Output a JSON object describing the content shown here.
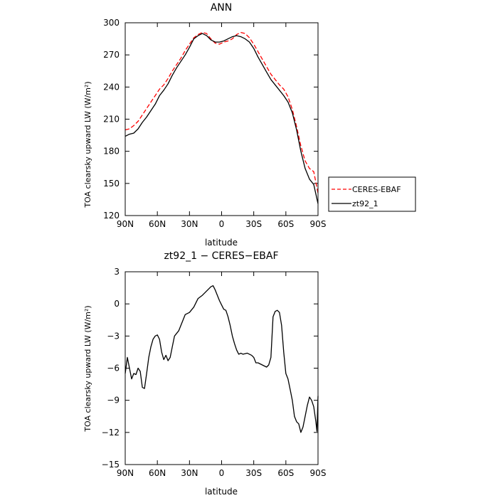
{
  "chart_data": [
    {
      "type": "line",
      "title": "ANN",
      "xlabel": "latitude",
      "ylabel": "TOA clearsky upward LW (W/m²)",
      "x_ticks": [
        90,
        60,
        30,
        0,
        -30,
        -60,
        -90
      ],
      "x_tick_labels": [
        "90N",
        "60N",
        "30N",
        "0",
        "30S",
        "60S",
        "90S"
      ],
      "xlim": [
        90,
        -90
      ],
      "ylim": [
        120,
        300
      ],
      "y_ticks": [
        120,
        150,
        180,
        210,
        240,
        270,
        300
      ],
      "y_tick_labels": [
        "120",
        "150",
        "180",
        "210",
        "240",
        "270",
        "300"
      ],
      "legend_position": "right",
      "series": [
        {
          "name": "CERES-EBAF",
          "color": "#ff0000",
          "dash": "dashed",
          "points": [
            [
              90,
              200
            ],
            [
              86,
              201
            ],
            [
              82,
              204
            ],
            [
              78,
              208
            ],
            [
              74,
              214
            ],
            [
              70,
              220
            ],
            [
              66,
              226
            ],
            [
              62,
              232
            ],
            [
              58,
              238
            ],
            [
              54,
              242
            ],
            [
              50,
              248
            ],
            [
              46,
              255
            ],
            [
              42,
              261
            ],
            [
              38,
              267
            ],
            [
              34,
              274
            ],
            [
              30,
              280
            ],
            [
              26,
              286
            ],
            [
              22,
              289
            ],
            [
              18,
              291
            ],
            [
              14,
              290
            ],
            [
              10,
              285
            ],
            [
              6,
              281
            ],
            [
              2,
              280
            ],
            [
              -2,
              282
            ],
            [
              -6,
              283
            ],
            [
              -10,
              285
            ],
            [
              -14,
              289
            ],
            [
              -18,
              291
            ],
            [
              -22,
              290
            ],
            [
              -26,
              286
            ],
            [
              -30,
              280
            ],
            [
              -34,
              273
            ],
            [
              -38,
              266
            ],
            [
              -42,
              259
            ],
            [
              -46,
              252
            ],
            [
              -50,
              247
            ],
            [
              -54,
              242
            ],
            [
              -58,
              238
            ],
            [
              -62,
              231
            ],
            [
              -66,
              219
            ],
            [
              -70,
              203
            ],
            [
              -74,
              185
            ],
            [
              -78,
              171
            ],
            [
              -82,
              164
            ],
            [
              -86,
              161
            ],
            [
              -90,
              141
            ]
          ]
        },
        {
          "name": "zt92_1",
          "color": "#000000",
          "dash": "solid",
          "points": [
            [
              90,
              194
            ],
            [
              86,
              196
            ],
            [
              82,
              197
            ],
            [
              78,
              201
            ],
            [
              74,
              207
            ],
            [
              70,
              212
            ],
            [
              66,
              218
            ],
            [
              62,
              224
            ],
            [
              58,
              232
            ],
            [
              54,
              237
            ],
            [
              50,
              243
            ],
            [
              46,
              251
            ],
            [
              42,
              258
            ],
            [
              38,
              264
            ],
            [
              34,
              270
            ],
            [
              30,
              277
            ],
            [
              26,
              285
            ],
            [
              22,
              288
            ],
            [
              18,
              290
            ],
            [
              14,
              288
            ],
            [
              10,
              284
            ],
            [
              6,
              282
            ],
            [
              2,
              282
            ],
            [
              -2,
              283
            ],
            [
              -6,
              285
            ],
            [
              -10,
              287
            ],
            [
              -14,
              288
            ],
            [
              -18,
              287
            ],
            [
              -22,
              285
            ],
            [
              -26,
              282
            ],
            [
              -30,
              276
            ],
            [
              -34,
              268
            ],
            [
              -38,
              261
            ],
            [
              -42,
              254
            ],
            [
              -46,
              247
            ],
            [
              -50,
              242
            ],
            [
              -54,
              237
            ],
            [
              -58,
              232
            ],
            [
              -62,
              226
            ],
            [
              -66,
              216
            ],
            [
              -70,
              200
            ],
            [
              -74,
              180
            ],
            [
              -78,
              164
            ],
            [
              -82,
              154
            ],
            [
              -86,
              149
            ],
            [
              -90,
              131
            ]
          ]
        }
      ]
    },
    {
      "type": "line",
      "title": "zt92_1 − CERES−EBAF",
      "xlabel": "latitude",
      "ylabel": "TOA clearsky upward LW (W/m²)",
      "x_ticks": [
        90,
        60,
        30,
        0,
        -30,
        -60,
        -90
      ],
      "x_tick_labels": [
        "90N",
        "60N",
        "30N",
        "0",
        "30S",
        "60S",
        "90S"
      ],
      "xlim": [
        90,
        -90
      ],
      "ylim": [
        -15,
        3
      ],
      "y_ticks": [
        -15,
        -12,
        -9,
        -6,
        -3,
        0,
        3
      ],
      "y_tick_labels": [
        "−15",
        "−12",
        "−9",
        "−6",
        "−3",
        "0",
        "3"
      ],
      "series": [
        {
          "name": "zt92_1",
          "color": "#000000",
          "dash": "solid",
          "points": [
            [
              90,
              -6.5
            ],
            [
              88,
              -5.0
            ],
            [
              86,
              -6.0
            ],
            [
              84,
              -7.0
            ],
            [
              82,
              -6.5
            ],
            [
              80,
              -6.6
            ],
            [
              78,
              -6.0
            ],
            [
              76,
              -6.3
            ],
            [
              74,
              -7.8
            ],
            [
              72,
              -7.9
            ],
            [
              70,
              -6.5
            ],
            [
              68,
              -5.0
            ],
            [
              66,
              -4.0
            ],
            [
              64,
              -3.3
            ],
            [
              62,
              -3.0
            ],
            [
              60,
              -2.9
            ],
            [
              58,
              -3.3
            ],
            [
              56,
              -4.5
            ],
            [
              54,
              -5.2
            ],
            [
              52,
              -4.8
            ],
            [
              50,
              -5.3
            ],
            [
              48,
              -5.0
            ],
            [
              46,
              -4.0
            ],
            [
              44,
              -3.0
            ],
            [
              40,
              -2.5
            ],
            [
              38,
              -2.0
            ],
            [
              34,
              -1.0
            ],
            [
              30,
              -0.8
            ],
            [
              26,
              -0.3
            ],
            [
              22,
              0.5
            ],
            [
              18,
              0.8
            ],
            [
              14,
              1.2
            ],
            [
              10,
              1.6
            ],
            [
              8,
              1.7
            ],
            [
              6,
              1.3
            ],
            [
              4,
              0.8
            ],
            [
              2,
              0.3
            ],
            [
              0,
              -0.1
            ],
            [
              -2,
              -0.5
            ],
            [
              -4,
              -0.6
            ],
            [
              -6,
              -1.2
            ],
            [
              -8,
              -2.0
            ],
            [
              -10,
              -3.0
            ],
            [
              -12,
              -3.7
            ],
            [
              -14,
              -4.3
            ],
            [
              -16,
              -4.7
            ],
            [
              -18,
              -4.6
            ],
            [
              -20,
              -4.7
            ],
            [
              -24,
              -4.6
            ],
            [
              -28,
              -4.8
            ],
            [
              -30,
              -5.0
            ],
            [
              -32,
              -5.5
            ],
            [
              -34,
              -5.5
            ],
            [
              -38,
              -5.7
            ],
            [
              -42,
              -5.9
            ],
            [
              -44,
              -5.7
            ],
            [
              -46,
              -5.0
            ],
            [
              -48,
              -1.2
            ],
            [
              -50,
              -0.7
            ],
            [
              -52,
              -0.6
            ],
            [
              -54,
              -0.8
            ],
            [
              -56,
              -2.0
            ],
            [
              -58,
              -4.5
            ],
            [
              -60,
              -6.5
            ],
            [
              -62,
              -7.0
            ],
            [
              -64,
              -8.0
            ],
            [
              -66,
              -9.0
            ],
            [
              -68,
              -10.5
            ],
            [
              -70,
              -11.0
            ],
            [
              -72,
              -11.2
            ],
            [
              -74,
              -12.0
            ],
            [
              -76,
              -11.5
            ],
            [
              -78,
              -10.5
            ],
            [
              -80,
              -9.5
            ],
            [
              -82,
              -8.7
            ],
            [
              -84,
              -9.0
            ],
            [
              -86,
              -9.6
            ],
            [
              -88,
              -11.0
            ],
            [
              -89,
              -11.9
            ],
            [
              -90,
              -8.6
            ]
          ]
        }
      ]
    }
  ]
}
